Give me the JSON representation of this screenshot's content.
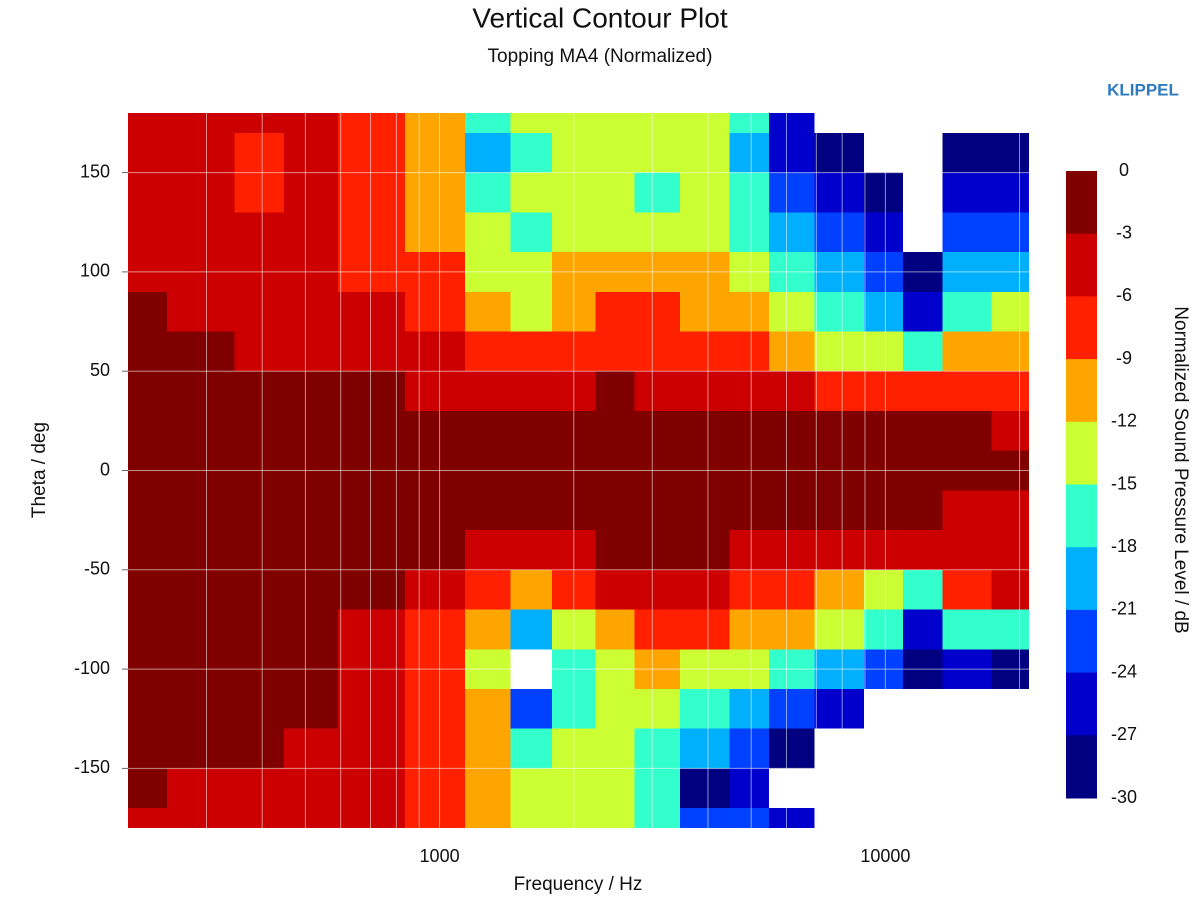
{
  "chart_data": {
    "type": "contour",
    "title": "Vertical Contour Plot",
    "subtitle": "Topping MA4 (Normalized)",
    "watermark": "KLIPPEL",
    "x_label": "Frequency / Hz",
    "y_label": "Theta / deg",
    "colorbar_label": "Normalized Sound Pressure Level / dB",
    "log_x": true,
    "grid": true,
    "xlim": [
      200,
      21000
    ],
    "ylim": [
      -180,
      180
    ],
    "xticks": [
      1000,
      10000
    ],
    "xminor_ticks": [
      300,
      400,
      500,
      600,
      700,
      800,
      900,
      2000,
      3000,
      4000,
      5000,
      6000,
      7000,
      8000,
      9000,
      20000
    ],
    "yticks": [
      -150,
      -100,
      -50,
      0,
      50,
      100,
      150
    ],
    "levels": [
      0,
      -3,
      -6,
      -9,
      -12,
      -15,
      -18,
      -21,
      -24,
      -27,
      -30
    ],
    "colors": [
      "#800000",
      "#cc0000",
      "#ff2000",
      "#ffa500",
      "#ccff33",
      "#33ffcc",
      "#00b0ff",
      "#0040ff",
      "#0000cc",
      "#000080"
    ],
    "x": [
      200,
      300,
      400,
      500,
      700,
      1000,
      1300,
      1600,
      2000,
      2500,
      3000,
      4000,
      5000,
      6000,
      8000,
      10000,
      12000,
      15000,
      20000
    ],
    "y": [
      180,
      160,
      140,
      120,
      100,
      80,
      60,
      40,
      20,
      0,
      -20,
      -40,
      -60,
      -80,
      -100,
      -120,
      -140,
      -160,
      -180
    ],
    "z": [
      [
        -4,
        -4,
        -4,
        -4,
        -7,
        -10,
        -16,
        -13,
        -13,
        -13,
        -13,
        -13,
        -16,
        -25,
        -33,
        -33,
        -33,
        -33,
        -33
      ],
      [
        -4,
        -4,
        -7,
        -4,
        -7,
        -10,
        -19,
        -16,
        -13,
        -13,
        -13,
        -13,
        -19,
        -25,
        -28,
        -33,
        -33,
        -28,
        -28
      ],
      [
        -4,
        -4,
        -7,
        -4,
        -7,
        -10,
        -16,
        -13,
        -13,
        -13,
        -16,
        -13,
        -16,
        -22,
        -25,
        -28,
        -33,
        -25,
        -25
      ],
      [
        -4,
        -4,
        -4,
        -4,
        -7,
        -10,
        -13,
        -16,
        -13,
        -13,
        -13,
        -13,
        -16,
        -19,
        -22,
        -25,
        -33,
        -22,
        -22
      ],
      [
        -4,
        -4,
        -4,
        -4,
        -7,
        -7,
        -13,
        -13,
        -10,
        -10,
        -10,
        -10,
        -13,
        -16,
        -19,
        -22,
        -28,
        -19,
        -19
      ],
      [
        -1,
        -4,
        -4,
        -4,
        -4,
        -7,
        -10,
        -13,
        -10,
        -7,
        -7,
        -10,
        -10,
        -13,
        -16,
        -19,
        -25,
        -16,
        -13
      ],
      [
        -1,
        -1,
        -4,
        -4,
        -4,
        -4,
        -7,
        -7,
        -7,
        -7,
        -7,
        -7,
        -7,
        -10,
        -13,
        -13,
        -16,
        -10,
        -10
      ],
      [
        -1,
        -1,
        -1,
        -1,
        -1,
        -4,
        -4,
        -4,
        -4,
        -1,
        -4,
        -4,
        -4,
        -4,
        -7,
        -7,
        -7,
        -7,
        -7
      ],
      [
        -1,
        -1,
        -1,
        -1,
        -1,
        -1,
        -1,
        -1,
        -1,
        -1,
        -1,
        -1,
        -1,
        -1,
        -1,
        -1,
        -1,
        -1,
        -4
      ],
      [
        -1,
        -1,
        -1,
        -1,
        -1,
        -1,
        -1,
        -1,
        -1,
        -1,
        -1,
        -1,
        -1,
        -1,
        -1,
        -1,
        -1,
        -1,
        -1
      ],
      [
        -1,
        -1,
        -1,
        -1,
        -1,
        -1,
        -1,
        -1,
        -1,
        -1,
        -1,
        -1,
        -1,
        -1,
        -1,
        -1,
        -1,
        -4,
        -4
      ],
      [
        -1,
        -1,
        -1,
        -1,
        -1,
        -1,
        -4,
        -4,
        -4,
        -1,
        -1,
        -1,
        -4,
        -4,
        -4,
        -4,
        -4,
        -4,
        -4
      ],
      [
        -1,
        -1,
        -1,
        -1,
        -1,
        -4,
        -7,
        -10,
        -7,
        -4,
        -4,
        -4,
        -7,
        -7,
        -10,
        -13,
        -16,
        -7,
        -4
      ],
      [
        -1,
        -1,
        -1,
        -1,
        -4,
        -7,
        -10,
        -19,
        -13,
        -10,
        -7,
        -7,
        -10,
        -10,
        -13,
        -16,
        -25,
        -16,
        -16
      ],
      [
        -1,
        -1,
        -1,
        -1,
        -4,
        -7,
        -13,
        -33,
        -16,
        -13,
        -10,
        -13,
        -13,
        -16,
        -19,
        -22,
        -28,
        -25,
        -28
      ],
      [
        -1,
        -1,
        -1,
        -1,
        -4,
        -7,
        -10,
        -22,
        -16,
        -13,
        -13,
        -16,
        -19,
        -22,
        -25,
        -33,
        -33,
        -33,
        -33
      ],
      [
        -1,
        -1,
        -1,
        -4,
        -4,
        -7,
        -10,
        -16,
        -13,
        -13,
        -16,
        -19,
        -22,
        -28,
        -33,
        -33,
        -33,
        -33,
        -33
      ],
      [
        -1,
        -4,
        -4,
        -4,
        -4,
        -7,
        -10,
        -13,
        -13,
        -13,
        -16,
        -28,
        -25,
        -33,
        -33,
        -33,
        -33,
        -33,
        -33
      ],
      [
        -4,
        -4,
        -4,
        -4,
        -4,
        -7,
        -10,
        -13,
        -13,
        -13,
        -16,
        -22,
        -22,
        -25,
        -33,
        -33,
        -33,
        -33,
        -33
      ]
    ]
  }
}
